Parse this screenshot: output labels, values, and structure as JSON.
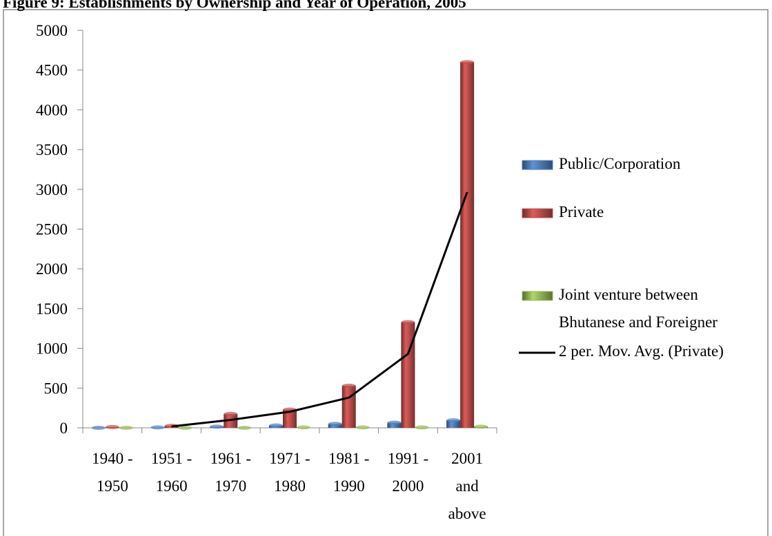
{
  "chart_data": {
    "type": "bar",
    "title": "Figure 9: Establishments by Ownership and Year of Operation, 2005",
    "categories": [
      [
        "1940 -",
        "1950"
      ],
      [
        "1951 -",
        "1960"
      ],
      [
        "1961 -",
        "1970"
      ],
      [
        "1971 -",
        "1980"
      ],
      [
        "1981 -",
        "1990"
      ],
      [
        "1991 -",
        "2000"
      ],
      [
        "2001",
        "and",
        "above"
      ]
    ],
    "series": [
      {
        "name": "Public/Corporation",
        "color": "#4f81bd",
        "values": [
          0,
          5,
          15,
          30,
          50,
          65,
          95
        ]
      },
      {
        "name": "Private",
        "color": "#c0504d",
        "values": [
          10,
          25,
          175,
          230,
          530,
          1330,
          4600
        ]
      },
      {
        "name": "Joint venture between Bhutanese and Foreigner",
        "color": "#9bbb59",
        "values": [
          0,
          0,
          0,
          5,
          5,
          5,
          15
        ]
      },
      {
        "name": "2 per. Mov. Avg. (Private)",
        "color": "#000000",
        "type": "line",
        "values": [
          null,
          17.5,
          100,
          202.5,
          380,
          930,
          2965
        ]
      }
    ],
    "ylim": [
      0,
      5000
    ],
    "yticks": [
      0,
      500,
      1000,
      1500,
      2000,
      2500,
      3000,
      3500,
      4000,
      4500,
      5000
    ],
    "legend": "right"
  }
}
